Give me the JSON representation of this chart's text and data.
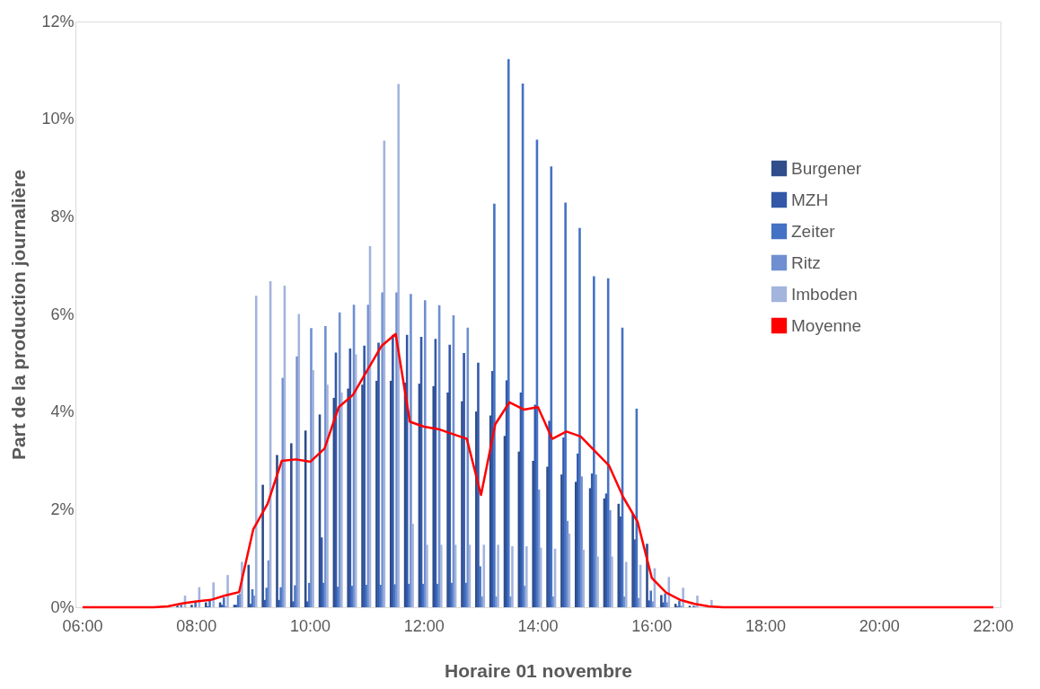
{
  "chart_data": {
    "type": "bar",
    "xlabel": "Horaire 01 novembre",
    "ylabel": "Part de la production journalière",
    "categories": [
      "06:00",
      null,
      null,
      null,
      null,
      null,
      null,
      null,
      "08:00",
      null,
      null,
      null,
      null,
      null,
      null,
      null,
      "10:00",
      null,
      null,
      null,
      null,
      null,
      null,
      null,
      "12:00",
      null,
      null,
      null,
      null,
      null,
      null,
      null,
      "14:00",
      null,
      null,
      null,
      null,
      null,
      null,
      null,
      "16:00",
      null,
      null,
      null,
      null,
      null,
      null,
      null,
      "18:00",
      null,
      null,
      null,
      null,
      null,
      null,
      null,
      "20:00",
      null,
      null,
      null,
      null,
      null,
      null,
      null,
      "22:00"
    ],
    "series": [
      {
        "name": "Burgener",
        "color": "#2e4d8a",
        "values": [
          0,
          0,
          0,
          0,
          0,
          0,
          null,
          0.03,
          0.05,
          0.1,
          0.1,
          0.05,
          0.87,
          2.51,
          3.12,
          3.36,
          3.62,
          3.95,
          4.29,
          4.48,
          4.56,
          4.64,
          4.64,
          4.6,
          4.58,
          4.53,
          4.4,
          4.22,
          4.01,
          3.93,
          3.51,
          3.19,
          3.0,
          2.88,
          2.72,
          2.57,
          2.44,
          2.23,
          2.12,
          1.92,
          1.3,
          0.25,
          0.07,
          0.03,
          0,
          0,
          0,
          0,
          0,
          0,
          0,
          0,
          0,
          0,
          0,
          0,
          0,
          0,
          0,
          0,
          0,
          0,
          0,
          0,
          0
        ]
      },
      {
        "name": "MZH",
        "color": "#3358a8",
        "values": [
          0,
          0,
          0,
          0,
          0,
          0,
          0,
          0,
          0,
          0.02,
          0.05,
          0.05,
          0.07,
          0.15,
          0.15,
          0.12,
          0.12,
          1.43,
          5.22,
          5.3,
          5.36,
          5.42,
          5.58,
          5.58,
          5.54,
          5.5,
          5.38,
          5.21,
          5.01,
          4.84,
          4.65,
          4.4,
          4.15,
          3.82,
          3.48,
          3.15,
          2.74,
          2.33,
          1.86,
          1.39,
          0.14,
          0.1,
          0.02,
          0,
          0,
          0,
          0,
          0,
          0,
          0,
          0,
          0,
          0,
          0,
          0,
          0,
          0,
          0,
          0,
          0,
          0,
          0,
          0,
          0,
          0
        ]
      },
      {
        "name": "Zeiter",
        "color": "#4472c4",
        "values": [
          0,
          0,
          0,
          0,
          0,
          0,
          0,
          0.05,
          0.1,
          0.15,
          0.2,
          0.25,
          0.37,
          0.4,
          0.41,
          0.45,
          0.5,
          0.5,
          0.42,
          0.44,
          0.46,
          0.46,
          0.47,
          0.48,
          0.48,
          0.48,
          0.5,
          0.5,
          0.84,
          8.27,
          11.23,
          10.73,
          9.58,
          9.03,
          8.29,
          7.77,
          6.78,
          6.74,
          5.73,
          4.07,
          0.34,
          0.28,
          0.13,
          0.03,
          0,
          0,
          0,
          0,
          0,
          0,
          0,
          0,
          0,
          0,
          0,
          0,
          0,
          0,
          0,
          0,
          0,
          0,
          0,
          0,
          0
        ]
      },
      {
        "name": "Ritz",
        "color": "#6f8fd0",
        "values": [
          0,
          0,
          0,
          0,
          0,
          0,
          0,
          0,
          0,
          0,
          0.02,
          0.28,
          0.24,
          0.96,
          4.7,
          5.14,
          5.72,
          5.76,
          6.04,
          6.2,
          6.2,
          6.45,
          6.45,
          6.42,
          6.29,
          6.19,
          5.98,
          5.73,
          0.22,
          0.22,
          0.22,
          0.44,
          2.41,
          0.22,
          1.77,
          2.68,
          2.72,
          1.99,
          0.22,
          0.19,
          0.12,
          0.1,
          0.03,
          0.02,
          0,
          0,
          0,
          0,
          0,
          0,
          0,
          0,
          0,
          0,
          0,
          0,
          0,
          0,
          0,
          0,
          0,
          0,
          0,
          0,
          0
        ]
      },
      {
        "name": "Imboden",
        "color": "#a3b4dd",
        "values": [
          0,
          0,
          0,
          0,
          0,
          0,
          null,
          0.24,
          0.41,
          0.51,
          0.66,
          0.93,
          6.38,
          6.68,
          6.59,
          6.01,
          4.86,
          4.56,
          4.4,
          5.18,
          7.4,
          9.56,
          10.72,
          1.71,
          1.28,
          1.28,
          1.28,
          1.28,
          1.28,
          1.28,
          1.25,
          1.25,
          1.22,
          1.2,
          1.51,
          1.18,
          1.04,
          1.04,
          0.93,
          0.87,
          0.8,
          0.62,
          0.4,
          0.24,
          0.15,
          0,
          0,
          0,
          0,
          0,
          0,
          0,
          0,
          0,
          0,
          0,
          0,
          0,
          0,
          0,
          0,
          0,
          0,
          0,
          0
        ]
      },
      {
        "name": "Moyenne",
        "color": "#ff0000",
        "type": "line",
        "values": [
          0,
          0,
          0,
          0,
          0,
          0,
          0.02,
          0.08,
          0.12,
          0.15,
          0.24,
          0.31,
          1.6,
          2.12,
          3.0,
          3.03,
          2.98,
          3.25,
          4.1,
          4.35,
          4.85,
          5.35,
          5.6,
          3.8,
          3.7,
          3.65,
          3.55,
          3.45,
          2.3,
          3.75,
          4.2,
          4.05,
          4.1,
          3.45,
          3.6,
          3.5,
          3.2,
          2.9,
          2.25,
          1.75,
          0.6,
          0.3,
          0.15,
          0.07,
          0.02,
          0,
          0,
          0,
          0,
          0,
          0,
          0,
          0,
          0,
          0,
          0,
          0,
          0,
          0,
          0,
          0,
          0,
          0,
          0,
          0
        ]
      }
    ],
    "ylim": [
      0,
      12
    ],
    "yticks": [
      {
        "value": 0,
        "label": "0%"
      },
      {
        "value": 2,
        "label": "2%"
      },
      {
        "value": 4,
        "label": "4%"
      },
      {
        "value": 6,
        "label": "6%"
      },
      {
        "value": 8,
        "label": "8%"
      },
      {
        "value": 10,
        "label": "10%"
      },
      {
        "value": 12,
        "label": "12%"
      }
    ],
    "grid": false,
    "legend": "top right"
  }
}
